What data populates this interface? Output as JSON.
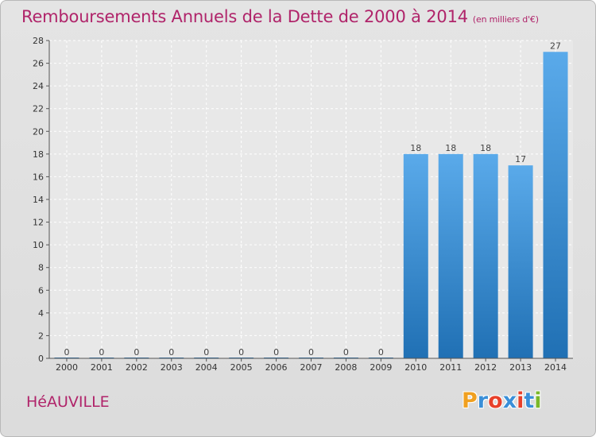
{
  "chart_data": {
    "type": "bar",
    "title": "Remboursements Annuels de la Dette de 2000 à 2014",
    "subtitle": "(en milliers d'€)",
    "categories": [
      "2000",
      "2001",
      "2002",
      "2003",
      "2004",
      "2005",
      "2006",
      "2007",
      "2008",
      "2009",
      "2010",
      "2011",
      "2012",
      "2013",
      "2014"
    ],
    "values": [
      0,
      0,
      0,
      0,
      0,
      0,
      0,
      0,
      0,
      0,
      18,
      18,
      18,
      17,
      27
    ],
    "ylim": [
      0,
      28
    ],
    "yticks": [
      0,
      2,
      4,
      6,
      8,
      10,
      12,
      14,
      16,
      18,
      20,
      22,
      24,
      26,
      28
    ],
    "grid": true,
    "bar_color": "#3f8fd6",
    "title_color": "#b0246a"
  },
  "footer": {
    "commune": "HéAUVILLE",
    "logo_letters": [
      "P",
      "r",
      "o",
      "x",
      "i",
      "t",
      "i"
    ],
    "logo_colors": [
      "#f0a020",
      "#3a8fd8",
      "#e8402a",
      "#3a8fd8",
      "#e8402a",
      "#3a8fd8",
      "#7ab82a"
    ]
  }
}
